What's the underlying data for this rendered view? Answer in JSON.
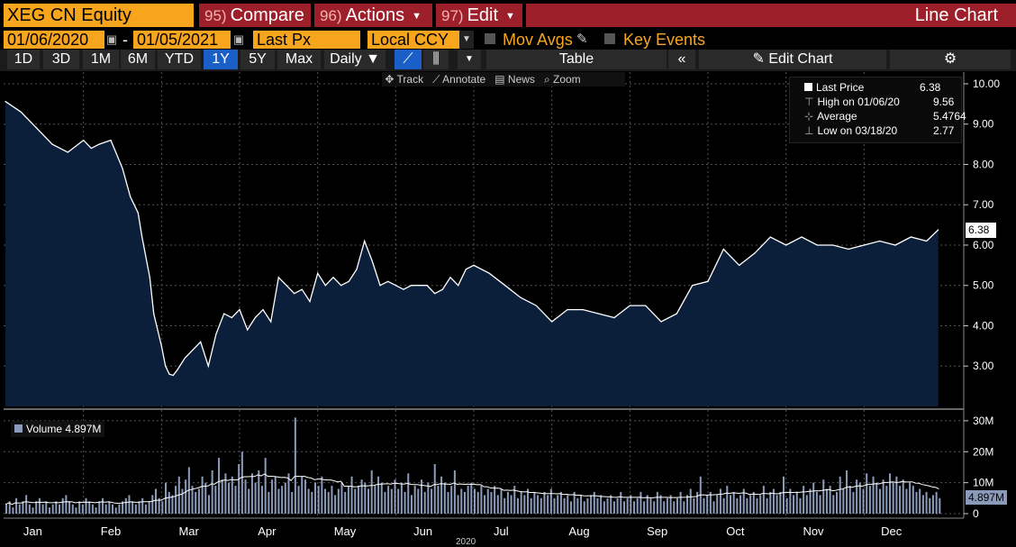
{
  "header": {
    "ticker": "XEG CN Equity",
    "compare_num": "95)",
    "compare_label": "Compare",
    "actions_num": "96)",
    "actions_label": "Actions",
    "edit_num": "97)",
    "edit_label": "Edit",
    "title": "Line Chart"
  },
  "controls": {
    "start_date": "01/06/2020",
    "end_date": "01/05/2021",
    "date_sep": "-",
    "field": "Last Px",
    "currency": "Local CCY",
    "mov_avgs": "Mov Avgs",
    "key_events": "Key Events"
  },
  "toolbar": {
    "ranges": [
      "1D",
      "3D",
      "1M",
      "6M",
      "YTD",
      "1Y",
      "5Y",
      "Max"
    ],
    "selected_range": "1Y",
    "frequency": "Daily",
    "table_label": "Table",
    "edit_chart_label": "Edit Chart",
    "track": "Track",
    "annotate": "Annotate",
    "news": "News",
    "zoom": "Zoom"
  },
  "legend": {
    "last_price_label": "Last Price",
    "last_price_value": "6.38",
    "high_label": "High on 01/06/20",
    "high_value": "9.56",
    "average_label": "Average",
    "average_value": "5.4764",
    "low_label": "Low on 03/18/20",
    "low_value": "2.77"
  },
  "volume_legend": {
    "label": "Volume",
    "value": "4.897M"
  },
  "last_price_tag": "6.38",
  "volume_tag": "4.897M",
  "year_label": "2020",
  "colors": {
    "accent_orange": "#f7a51c",
    "header_red": "#9d1f2a",
    "area_fill": "#0c1f3a",
    "line": "#ffffff",
    "volume_bar": "#8a9ab8",
    "selected_blue": "#1a5fc8"
  },
  "chart_data": [
    {
      "type": "area",
      "title": "XEG CN Equity Last Price",
      "xlabel": "2020",
      "ylabel": "",
      "ylim": [
        2.0,
        10.2
      ],
      "yticks": [
        "3.00",
        "4.00",
        "5.00",
        "6.00",
        "7.00",
        "8.00",
        "9.00",
        "10.00"
      ],
      "ytick_values": [
        3,
        4,
        5,
        6,
        7,
        8,
        9,
        10
      ],
      "x_months": [
        "Jan",
        "Feb",
        "Mar",
        "Apr",
        "May",
        "Jun",
        "Jul",
        "Aug",
        "Sep",
        "Oct",
        "Nov",
        "Dec"
      ],
      "x_month_index": [
        0.35,
        1.35,
        2.35,
        3.35,
        4.35,
        5.35,
        6.35,
        7.35,
        8.35,
        9.35,
        10.35,
        11.35
      ],
      "x": [
        0.0,
        0.2,
        0.4,
        0.6,
        0.8,
        1.0,
        1.1,
        1.2,
        1.35,
        1.5,
        1.6,
        1.7,
        1.75,
        1.85,
        1.9,
        2.0,
        2.05,
        2.1,
        2.15,
        2.2,
        2.3,
        2.4,
        2.5,
        2.6,
        2.7,
        2.8,
        2.9,
        3.0,
        3.1,
        3.2,
        3.3,
        3.4,
        3.5,
        3.6,
        3.7,
        3.8,
        3.9,
        4.0,
        4.1,
        4.2,
        4.3,
        4.4,
        4.5,
        4.6,
        4.7,
        4.8,
        4.9,
        5.0,
        5.1,
        5.2,
        5.3,
        5.4,
        5.5,
        5.6,
        5.7,
        5.8,
        5.9,
        6.0,
        6.2,
        6.4,
        6.6,
        6.8,
        7.0,
        7.2,
        7.4,
        7.6,
        7.8,
        8.0,
        8.2,
        8.4,
        8.6,
        8.8,
        9.0,
        9.2,
        9.4,
        9.6,
        9.8,
        10.0,
        10.2,
        10.4,
        10.6,
        10.8,
        11.0,
        11.2,
        11.4,
        11.6,
        11.8,
        11.95
      ],
      "values": [
        9.56,
        9.3,
        8.9,
        8.5,
        8.3,
        8.6,
        8.4,
        8.5,
        8.6,
        7.9,
        7.2,
        6.8,
        6.2,
        5.2,
        4.3,
        3.5,
        3.0,
        2.8,
        2.77,
        2.9,
        3.2,
        3.4,
        3.6,
        3.0,
        3.8,
        4.3,
        4.2,
        4.4,
        3.9,
        4.2,
        4.4,
        4.1,
        5.2,
        5.0,
        4.8,
        4.9,
        4.6,
        5.3,
        5.0,
        5.2,
        5.0,
        5.1,
        5.4,
        6.1,
        5.6,
        5.0,
        5.1,
        5.0,
        4.9,
        5.0,
        5.0,
        5.0,
        4.8,
        4.9,
        5.2,
        5.0,
        5.4,
        5.5,
        5.3,
        5.0,
        4.7,
        4.5,
        4.1,
        4.4,
        4.4,
        4.3,
        4.2,
        4.5,
        4.5,
        4.1,
        4.3,
        5.0,
        5.1,
        5.9,
        5.5,
        5.8,
        6.2,
        6.0,
        6.2,
        6.0,
        6.0,
        5.9,
        6.0,
        6.1,
        6.0,
        6.2,
        6.1,
        6.38
      ]
    },
    {
      "type": "bar",
      "title": "Volume",
      "ylim": [
        0,
        32
      ],
      "yticks": [
        "0",
        "10M",
        "20M",
        "30M"
      ],
      "ytick_values": [
        0,
        10,
        20,
        30
      ],
      "unit": "M",
      "values": [
        3,
        4,
        2,
        5,
        3,
        4,
        6,
        3,
        2,
        4,
        5,
        3,
        4,
        2,
        3,
        4,
        3,
        5,
        6,
        4,
        3,
        2,
        4,
        3,
        5,
        4,
        3,
        2,
        4,
        5,
        3,
        4,
        3,
        2,
        3,
        4,
        5,
        6,
        4,
        3,
        4,
        5,
        3,
        4,
        6,
        8,
        5,
        4,
        10,
        7,
        6,
        9,
        12,
        8,
        11,
        15,
        9,
        7,
        8,
        12,
        10,
        6,
        14,
        9,
        18,
        11,
        13,
        10,
        12,
        9,
        16,
        20,
        11,
        8,
        13,
        10,
        14,
        9,
        18,
        7,
        11,
        12,
        8,
        9,
        10,
        13,
        7,
        31,
        9,
        12,
        11,
        8,
        7,
        10,
        9,
        12,
        8,
        7,
        9,
        6,
        8,
        10,
        7,
        9,
        12,
        8,
        9,
        11,
        10,
        8,
        14,
        9,
        12,
        10,
        7,
        9,
        8,
        11,
        8,
        10,
        7,
        13,
        6,
        9,
        8,
        11,
        7,
        10,
        8,
        16,
        9,
        12,
        10,
        7,
        9,
        14,
        6,
        8,
        7,
        9,
        10,
        8,
        7,
        9,
        6,
        8,
        7,
        9,
        6,
        8,
        5,
        7,
        6,
        9,
        5,
        7,
        6,
        8,
        5,
        7,
        6,
        5,
        7,
        6,
        8,
        5,
        6,
        7,
        5,
        6,
        4,
        7,
        5,
        6,
        4,
        5,
        6,
        7,
        5,
        6,
        4,
        5,
        6,
        4,
        5,
        7,
        4,
        5,
        6,
        4,
        5,
        7,
        4,
        6,
        5,
        4,
        7,
        6,
        4,
        5,
        6,
        4,
        5,
        7,
        4,
        6,
        8,
        5,
        7,
        12,
        5,
        6,
        7,
        4,
        6,
        8,
        5,
        9,
        6,
        7,
        5,
        6,
        8,
        5,
        6,
        7,
        5,
        6,
        9,
        5,
        7,
        8,
        6,
        7,
        12,
        5,
        8,
        6,
        7,
        5,
        9,
        6,
        8,
        10,
        7,
        6,
        11,
        8,
        9,
        6,
        7,
        12,
        8,
        14,
        9,
        7,
        11,
        10,
        8,
        13,
        9,
        12,
        10,
        8,
        11,
        9,
        13,
        10,
        12,
        9,
        11,
        8,
        10,
        9,
        7,
        8,
        6,
        7,
        5,
        6,
        7,
        5
      ]
    }
  ]
}
